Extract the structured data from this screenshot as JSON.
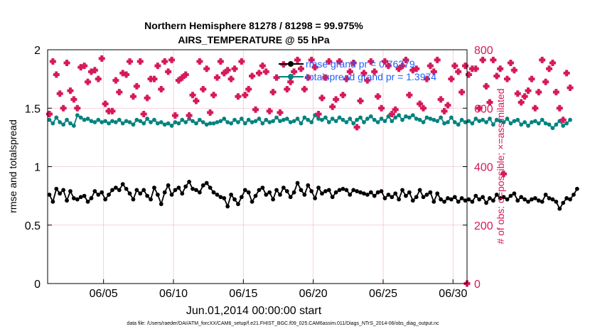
{
  "chart_data": {
    "type": "line",
    "title_line1": "Northern Hemisphere 81278 / 81298 = 99.975%",
    "title_line2": "AIRS_TEMPERATURE @ 55 hPa",
    "xlabel": "Jun.01,2014 00:00:00 start",
    "ylabel_left": "rmse and totalspread",
    "ylabel_right": "# of obs: o=possible; ×=assimilated",
    "x_range_days": [
      1,
      31
    ],
    "x_ticks": [
      {
        "day": 5,
        "label": "06/05"
      },
      {
        "day": 10,
        "label": "06/10"
      },
      {
        "day": 15,
        "label": "06/15"
      },
      {
        "day": 20,
        "label": "06/20"
      },
      {
        "day": 25,
        "label": "06/25"
      },
      {
        "day": 30,
        "label": "06/30"
      }
    ],
    "ylim_left": [
      0,
      2
    ],
    "yticks_left": [
      "0",
      "0.5",
      "1",
      "1.5",
      "2"
    ],
    "ylim_right": [
      0,
      800
    ],
    "yticks_right": [
      "0",
      "200",
      "400",
      "600",
      "800"
    ],
    "legend": [
      {
        "label": "rmse grand pr = 0.76279",
        "color": "#000000"
      },
      {
        "label": "totalspread grand pr = 1.3974",
        "color": "#00827f"
      }
    ],
    "series": [
      {
        "name": "rmse",
        "axis": "left",
        "color": "#000000",
        "x_start": 1.125,
        "x_step": 0.25,
        "values": [
          0.76,
          0.7,
          0.81,
          0.77,
          0.8,
          0.71,
          0.79,
          0.73,
          0.72,
          0.74,
          0.75,
          0.7,
          0.73,
          0.79,
          0.76,
          0.78,
          0.72,
          0.76,
          0.8,
          0.82,
          0.8,
          0.85,
          0.81,
          0.77,
          0.72,
          0.8,
          0.77,
          0.8,
          0.75,
          0.72,
          0.82,
          0.76,
          0.68,
          0.78,
          0.84,
          0.76,
          0.8,
          0.82,
          0.77,
          0.83,
          0.87,
          0.81,
          0.8,
          0.78,
          0.84,
          0.86,
          0.82,
          0.78,
          0.76,
          0.74,
          0.73,
          0.66,
          0.76,
          0.72,
          0.68,
          0.74,
          0.8,
          0.78,
          0.7,
          0.75,
          0.8,
          0.82,
          0.76,
          0.78,
          0.72,
          0.8,
          0.76,
          0.82,
          0.79,
          0.74,
          0.78,
          0.86,
          0.8,
          0.76,
          0.84,
          0.79,
          0.73,
          0.82,
          0.77,
          0.79,
          0.8,
          0.74,
          0.78,
          0.8,
          0.81,
          0.8,
          0.76,
          0.8,
          0.79,
          0.78,
          0.77,
          0.76,
          0.78,
          0.75,
          0.78,
          0.79,
          0.73,
          0.76,
          0.74,
          0.77,
          0.72,
          0.8,
          0.75,
          0.78,
          0.71,
          0.74,
          0.8,
          0.74,
          0.76,
          0.78,
          0.7,
          0.77,
          0.72,
          0.7,
          0.73,
          0.72,
          0.74,
          0.7,
          0.73,
          0.71,
          0.72,
          0.7,
          0.75,
          0.72,
          0.74,
          0.69,
          0.73,
          0.71,
          0.76,
          0.73,
          0.74,
          0.72,
          0.75,
          0.77,
          0.71,
          0.74,
          0.72,
          0.7,
          0.72,
          0.73,
          0.71,
          0.7,
          0.76,
          0.73,
          0.72,
          0.7,
          0.64,
          0.69,
          0.73,
          0.72,
          0.76,
          0.81
        ]
      },
      {
        "name": "totalspread",
        "axis": "left",
        "color": "#00827f",
        "x_start": 1.125,
        "x_step": 0.25,
        "values": [
          1.4,
          1.37,
          1.42,
          1.38,
          1.36,
          1.4,
          1.37,
          1.35,
          1.44,
          1.42,
          1.4,
          1.41,
          1.39,
          1.38,
          1.4,
          1.38,
          1.39,
          1.37,
          1.39,
          1.38,
          1.4,
          1.37,
          1.39,
          1.38,
          1.36,
          1.4,
          1.39,
          1.37,
          1.41,
          1.38,
          1.4,
          1.37,
          1.38,
          1.36,
          1.37,
          1.35,
          1.38,
          1.37,
          1.4,
          1.38,
          1.41,
          1.39,
          1.37,
          1.4,
          1.38,
          1.36,
          1.37,
          1.37,
          1.38,
          1.39,
          1.41,
          1.38,
          1.37,
          1.4,
          1.38,
          1.41,
          1.37,
          1.4,
          1.38,
          1.39,
          1.41,
          1.37,
          1.4,
          1.38,
          1.39,
          1.42,
          1.39,
          1.4,
          1.41,
          1.38,
          1.39,
          1.41,
          1.37,
          1.42,
          1.4,
          1.38,
          1.44,
          1.41,
          1.4,
          1.42,
          1.38,
          1.41,
          1.39,
          1.42,
          1.4,
          1.38,
          1.41,
          1.37,
          1.4,
          1.42,
          1.38,
          1.41,
          1.43,
          1.4,
          1.38,
          1.41,
          1.39,
          1.43,
          1.39,
          1.42,
          1.44,
          1.4,
          1.43,
          1.42,
          1.44,
          1.41,
          1.4,
          1.38,
          1.42,
          1.41,
          1.4,
          1.39,
          1.42,
          1.37,
          1.38,
          1.42,
          1.38,
          1.36,
          1.4,
          1.38,
          1.39,
          1.37,
          1.41,
          1.39,
          1.4,
          1.38,
          1.41,
          1.36,
          1.4,
          1.39,
          1.38,
          1.41,
          1.37,
          1.39,
          1.4,
          1.36,
          1.38,
          1.35,
          1.38,
          1.39,
          1.37,
          1.4,
          1.37,
          1.36,
          1.33,
          1.36,
          1.39,
          1.35,
          1.37,
          1.4
        ]
      },
      {
        "name": "obs_possible",
        "axis": "right",
        "color": "#d6195a",
        "x_start": 1.125,
        "x_step": 0.25,
        "values": [
          580,
          760,
          715,
          650,
          600,
          755,
          660,
          630,
          600,
          740,
          745,
          690,
          725,
          730,
          700,
          770,
          615,
          590,
          590,
          695,
          655,
          720,
          715,
          760,
          640,
          675,
          760,
          580,
          635,
          700,
          700,
          745,
          665,
          760,
          725,
          765,
          575,
          695,
          705,
          715,
          575,
          645,
          625,
          760,
          665,
          735,
          585,
          645,
          705,
          760,
          720,
          730,
          700,
          735,
          640,
          760,
          645,
          665,
          710,
          595,
          720,
          745,
          725,
          590,
          655,
          705,
          585,
          750,
          665,
          690,
          725,
          765,
          735,
          665,
          705,
          765,
          740,
          580,
          635,
          705,
          760,
          605,
          630,
          760,
          645,
          700,
          725,
          755,
          535,
          625,
          720,
          695,
          760,
          725,
          640,
          600,
          760,
          745,
          580,
          595,
          735,
          745,
          765,
          645,
          730,
          735,
          615,
          600,
          700,
          745,
          725,
          765,
          630,
          590,
          610,
          700,
          745,
          725,
          655,
          745,
          715,
          735,
          735,
          600,
          765,
          675,
          620,
          765,
          710,
          735,
          375,
          700,
          755,
          730,
          650,
          620,
          640,
          660,
          700,
          600,
          655,
          765,
          690,
          735,
          755,
          655,
          600,
          560,
          720,
          670
        ]
      }
    ],
    "footer": "data file: /Users/raeder/DAI/ATM_forcXX/CAM6_setup/f.e21.FHIST_BGC.f09_025.CAM6assim.011/Diags_NTrS_2014-06/obs_diag_output.nc"
  }
}
